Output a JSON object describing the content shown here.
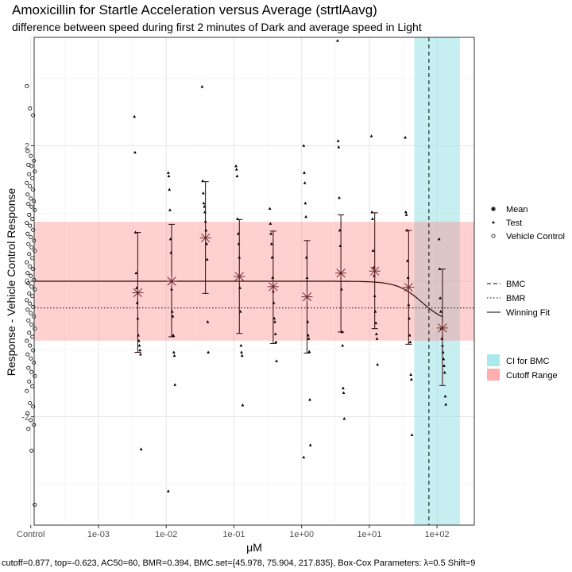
{
  "chart_data": {
    "type": "scatter",
    "title": "Amoxicillin for Startle Acceleration versus Average (strtlAavg)",
    "subtitle": "difference between speed during first 2 minutes of Dark and average speed in Light",
    "xlabel": "μM",
    "ylabel": "Response - Vehicle Control Response",
    "x_scale": "log10",
    "xlim": [
      -3.95,
      2.55
    ],
    "ylim": [
      -3.6,
      3.6
    ],
    "x_tick_values": [
      -4,
      -3,
      -2,
      -1,
      0,
      1,
      2
    ],
    "x_tick_labels": [
      "Control",
      "1e-03",
      "1e-02",
      "1e-01",
      "1e+00",
      "1e+01",
      "1e+02"
    ],
    "y_tick_values": [
      -2,
      0,
      2
    ],
    "y_tick_labels": [
      "-2",
      "0",
      "2"
    ],
    "grid": true,
    "legend_position": "right",
    "cutoff_range": [
      -0.877,
      0.877
    ],
    "ci_bmc_log10": [
      1.663,
      2.338
    ],
    "bmc_log10": 1.88,
    "bmr": -0.394,
    "means": [
      {
        "x": -2.42,
        "y": -0.17,
        "lo": -1.05,
        "hi": 0.72
      },
      {
        "x": -1.92,
        "y": 0.0,
        "lo": -0.82,
        "hi": 0.84
      },
      {
        "x": -1.42,
        "y": 0.64,
        "lo": -0.18,
        "hi": 1.47
      },
      {
        "x": -0.92,
        "y": 0.07,
        "lo": -0.77,
        "hi": 0.91
      },
      {
        "x": -0.42,
        "y": -0.08,
        "lo": -0.92,
        "hi": 0.74
      },
      {
        "x": 0.08,
        "y": -0.23,
        "lo": -1.06,
        "hi": 0.6
      },
      {
        "x": 0.58,
        "y": 0.12,
        "lo": -0.75,
        "hi": 0.98
      },
      {
        "x": 1.08,
        "y": 0.15,
        "lo": -0.7,
        "hi": 1.01
      },
      {
        "x": 1.58,
        "y": -0.09,
        "lo": -0.93,
        "hi": 0.75
      },
      {
        "x": 2.08,
        "y": -0.69,
        "lo": -1.54,
        "hi": 0.18
      }
    ],
    "winning_fit": {
      "top": -0.623,
      "ac50": 60
    },
    "control_points": [
      2.88,
      2.55,
      2.45,
      1.92,
      1.85,
      1.78,
      1.72,
      1.7,
      1.62,
      1.58,
      1.52,
      1.45,
      1.4,
      1.35,
      1.28,
      1.22,
      1.18,
      1.14,
      1.1,
      1.05,
      0.98,
      0.92,
      0.86,
      0.82,
      0.76,
      0.7,
      0.65,
      0.6,
      0.55,
      0.5,
      0.45,
      0.4,
      0.34,
      0.28,
      0.22,
      0.18,
      0.12,
      0.08,
      0.02,
      -0.03,
      -0.08,
      -0.12,
      -0.18,
      -0.22,
      -0.28,
      -0.33,
      -0.38,
      -0.42,
      -0.47,
      -0.52,
      -0.58,
      -0.64,
      -0.7,
      -0.76,
      -0.82,
      -0.88,
      -0.95,
      -1.02,
      -1.08,
      -1.14,
      -1.2,
      -1.28,
      -1.34,
      -1.4,
      -1.48,
      -1.55,
      -1.62,
      -1.8,
      -1.85,
      -1.95,
      -2.05,
      -2.12,
      -2.18,
      -2.5,
      -3.3
    ],
    "test_points": [
      {
        "x": -2.42,
        "y": [
          2.43,
          1.9,
          0.72,
          0.12,
          -0.1,
          -0.32,
          -0.55,
          -0.8,
          -0.88,
          -0.95,
          -1.02,
          -1.08,
          -2.48
        ]
      },
      {
        "x": -1.92,
        "y": [
          1.6,
          1.55,
          1.35,
          1.05,
          0.62,
          0.42,
          -0.12,
          -0.45,
          -0.52,
          -0.8,
          -1.05,
          -1.1,
          -1.53,
          -3.1
        ]
      },
      {
        "x": -1.42,
        "y": [
          2.87,
          1.48,
          1.3,
          1.15,
          1.1,
          1.02,
          0.88,
          0.75,
          0.55,
          0.32,
          -0.6,
          -1.05
        ]
      },
      {
        "x": -0.92,
        "y": [
          1.7,
          1.65,
          1.55,
          0.92,
          0.7,
          0.55,
          0.35,
          -0.1,
          -0.45,
          -0.95,
          -1.05,
          -1.1,
          -1.83
        ]
      },
      {
        "x": -0.42,
        "y": [
          1.07,
          0.85,
          0.7,
          0.55,
          0.35,
          0.05,
          -0.15,
          -0.32,
          -0.55,
          -0.6,
          -0.78,
          -0.9,
          -1.18
        ]
      },
      {
        "x": 0.08,
        "y": [
          2.0,
          1.6,
          1.45,
          1.15,
          0.95,
          0.35,
          0.05,
          -0.6,
          -0.8,
          -0.85,
          -1.04,
          -1.75,
          -2.42,
          -2.6
        ]
      },
      {
        "x": 0.58,
        "y": [
          3.55,
          2.07,
          1.98,
          1.23,
          0.75,
          0.52,
          0.12,
          -0.12,
          -0.75,
          -0.95,
          -1.58,
          -1.65,
          -2.03
        ]
      },
      {
        "x": 1.08,
        "y": [
          2.14,
          1.02,
          0.92,
          0.45,
          0.2,
          0.08,
          -0.22,
          -0.45,
          -0.62,
          -0.78,
          -0.85,
          -1.23
        ]
      },
      {
        "x": 1.58,
        "y": [
          2.12,
          1.02,
          0.98,
          0.75,
          0.3,
          0.05,
          -0.35,
          -0.55,
          -0.8,
          -0.9,
          -1.38,
          -1.45,
          -2.27
        ]
      },
      {
        "x": 2.08,
        "y": [
          0.62,
          0.18,
          -0.25,
          -0.45,
          -0.7,
          -0.85,
          -0.95,
          -1.05,
          -1.15,
          -1.25,
          -1.35,
          -1.7,
          -1.82
        ]
      }
    ],
    "legend_shapes": [
      "Mean",
      "Test",
      "Vehicle Control"
    ],
    "legend_lines": [
      "BMC",
      "BMR",
      "Winning Fit"
    ],
    "legend_fills": [
      "CI for BMC",
      "Cutoff Range"
    ],
    "colors": {
      "ci": "#c6eef0",
      "cutoff": "#ffc9c9",
      "fit": "#2b0606",
      "error_bar": "#2b0606",
      "mean": "#6b2a2a"
    },
    "caption": "cutoff=0.877, top=-0.623, AC50=60, BMR=0.394, BMC.set={45.978, 75.904, 217.835}, Box-Cox Parameters: λ=0.5 Shift=9"
  }
}
